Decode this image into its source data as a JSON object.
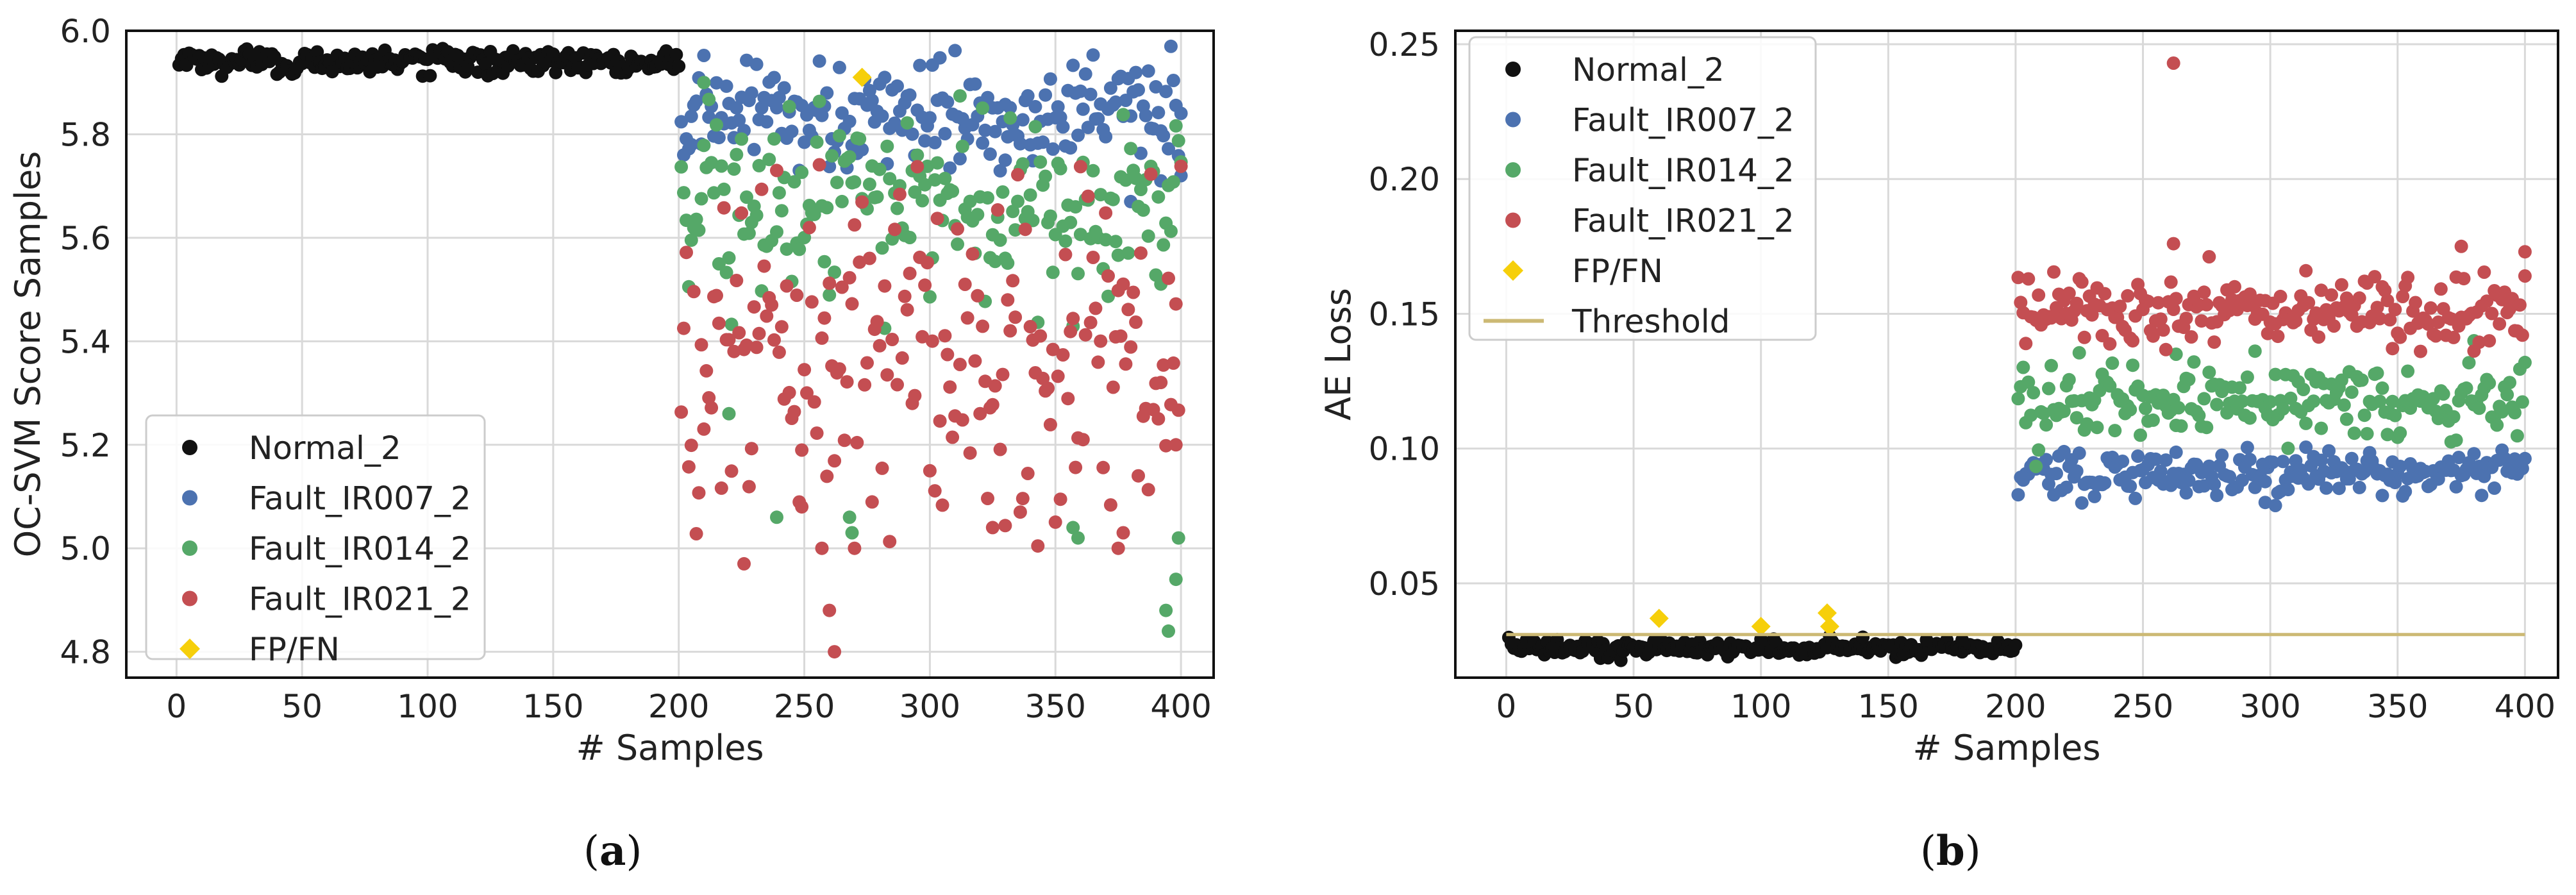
{
  "colors": {
    "normal": "#111111",
    "ir007": "#4c72b0",
    "ir014": "#55a868",
    "ir021": "#c44e52",
    "fpfn": "#f6cf0a",
    "threshold": "#ccb974",
    "grid": "#d9d9d9"
  },
  "chart_data": [
    {
      "type": "scatter",
      "panel_label": "a",
      "xlabel": "# Samples",
      "ylabel": "OC-SVM Score Samples",
      "xlim": [
        -20,
        413
      ],
      "ylim": [
        4.75,
        6.0
      ],
      "xticks": [
        0,
        50,
        100,
        150,
        200,
        250,
        300,
        350,
        400
      ],
      "xtick_labels": [
        "0",
        "50",
        "100",
        "150",
        "200",
        "250",
        "300",
        "350",
        "400"
      ],
      "yticks": [
        4.8,
        5.0,
        5.2,
        5.4,
        5.6,
        5.8,
        6.0
      ],
      "ytick_labels": [
        "4.8",
        "5.0",
        "5.2",
        "5.4",
        "5.6",
        "5.8",
        "6.0"
      ],
      "grid": true,
      "legend_position": "lower-left",
      "series": [
        {
          "name": "Normal_2",
          "key": "normal",
          "marker": "circle",
          "x_range": [
            1,
            200
          ],
          "center": 5.94,
          "spread": 0.012,
          "dips": [
            [
              10,
              5.925
            ],
            [
              80,
              5.93
            ],
            [
              120,
              5.92
            ],
            [
              130,
              5.918
            ],
            [
              190,
              5.93
            ]
          ]
        },
        {
          "name": "Fault_IR007_2",
          "key": "ir007",
          "marker": "circle",
          "x_range": [
            201,
            400
          ],
          "center": 5.84,
          "spread": 0.05,
          "outliers": [
            [
              205,
              5.78
            ],
            [
              330,
              5.75
            ],
            [
              392,
              5.71
            ],
            [
              400,
              5.72
            ],
            [
              380,
              5.67
            ]
          ]
        },
        {
          "name": "Fault_IR014_2",
          "key": "ir014",
          "marker": "circle",
          "x_range": [
            201,
            400
          ],
          "center": 5.66,
          "spread": 0.09,
          "outliers": [
            [
              220,
              5.26
            ],
            [
              239,
              5.06
            ],
            [
              268,
              5.06
            ],
            [
              269,
              5.03
            ],
            [
              357,
              5.04
            ],
            [
              359,
              5.02
            ],
            [
              394,
              4.88
            ],
            [
              395,
              4.84
            ],
            [
              398,
              4.94
            ],
            [
              399,
              5.02
            ],
            [
              210,
              5.9
            ]
          ]
        },
        {
          "name": "Fault_IR021_2",
          "key": "ir021",
          "marker": "circle",
          "x_range": [
            201,
            400
          ],
          "center": 5.38,
          "spread": 0.16,
          "outliers": [
            [
              226,
              4.97
            ],
            [
              249,
              5.08
            ],
            [
              257,
              5.0
            ],
            [
              260,
              4.88
            ],
            [
              262,
              4.8
            ],
            [
              270,
              5.0
            ],
            [
              325,
              5.04
            ],
            [
              375,
              5.0
            ],
            [
              377,
              5.03
            ],
            [
              398,
              5.2
            ]
          ]
        },
        {
          "name": "FP/FN",
          "key": "fpfn",
          "marker": "diamond",
          "points": [
            [
              273,
              5.91
            ]
          ]
        }
      ]
    },
    {
      "type": "scatter",
      "panel_label": "b",
      "xlabel": "# Samples",
      "ylabel": "AE Loss",
      "xlim": [
        -20,
        413
      ],
      "ylim": [
        0.015,
        0.255
      ],
      "xticks": [
        0,
        50,
        100,
        150,
        200,
        250,
        300,
        350,
        400
      ],
      "xtick_labels": [
        "0",
        "50",
        "100",
        "150",
        "200",
        "250",
        "300",
        "350",
        "400"
      ],
      "yticks": [
        0.05,
        0.1,
        0.15,
        0.2,
        0.25
      ],
      "ytick_labels": [
        "0.05",
        "0.10",
        "0.15",
        "0.20",
        "0.25"
      ],
      "grid": true,
      "legend_position": "upper-left",
      "series": [
        {
          "name": "Normal_2",
          "key": "normal",
          "marker": "circle",
          "x_range": [
            1,
            200
          ],
          "center": 0.026,
          "spread": 0.0015,
          "outliers": [
            [
              140,
              0.03
            ],
            [
              165,
              0.029
            ],
            [
              179,
              0.029
            ]
          ]
        },
        {
          "name": "Fault_IR007_2",
          "key": "ir007",
          "marker": "circle",
          "x_range": [
            201,
            400
          ],
          "center": 0.091,
          "spread": 0.004,
          "outliers": [
            [
              298,
              0.08
            ]
          ]
        },
        {
          "name": "Fault_IR014_2",
          "key": "ir014",
          "marker": "circle",
          "x_range": [
            201,
            400
          ],
          "center": 0.118,
          "spread": 0.008,
          "outliers": [
            [
              263,
              0.135
            ],
            [
              380,
              0.14
            ]
          ]
        },
        {
          "name": "Fault_IR021_2",
          "key": "ir021",
          "marker": "circle",
          "x_range": [
            201,
            400
          ],
          "center": 0.151,
          "spread": 0.007,
          "outliers": [
            [
              262,
              0.243
            ],
            [
              262,
              0.176
            ],
            [
              375,
              0.175
            ],
            [
              400,
              0.173
            ]
          ]
        },
        {
          "name": "FP/FN",
          "key": "fpfn",
          "marker": "diamond",
          "points": [
            [
              60,
              0.037
            ],
            [
              100,
              0.034
            ],
            [
              126,
              0.039
            ],
            [
              127,
              0.034
            ]
          ]
        },
        {
          "name": "Threshold",
          "key": "threshold",
          "marker": "line",
          "x": [
            0,
            400
          ],
          "y": 0.031
        }
      ]
    }
  ]
}
